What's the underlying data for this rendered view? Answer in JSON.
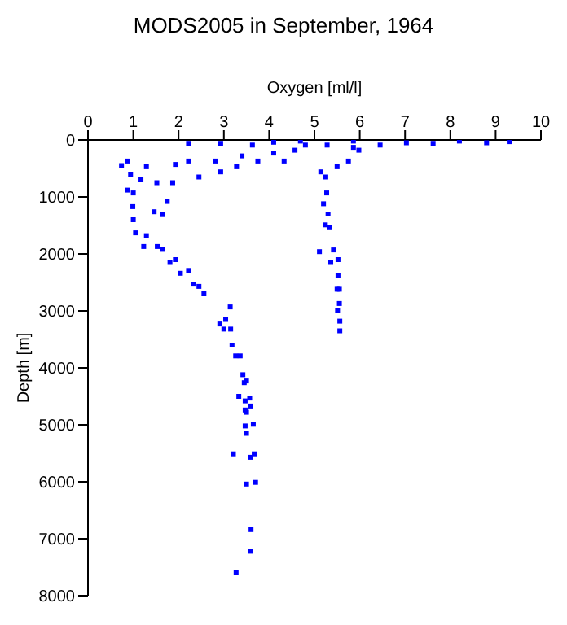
{
  "chart_data": {
    "type": "scatter",
    "title": "MODS2005 in September, 1964",
    "xlabel": "Oxygen [ml/l]",
    "ylabel": "Depth [m]",
    "xlim": [
      0,
      10
    ],
    "xticks": [
      0,
      1,
      2,
      3,
      4,
      5,
      6,
      7,
      8,
      9,
      10
    ],
    "ylim": [
      8000,
      0
    ],
    "yticks": [
      0,
      1000,
      2000,
      3000,
      4000,
      5000,
      6000,
      7000,
      8000
    ],
    "grid": false,
    "legend": false,
    "marker": "square",
    "series": [
      {
        "color": "#0000ff",
        "x": [
          3.14,
          3.04,
          2.91,
          3.0,
          3.15,
          3.18,
          3.26,
          3.36,
          3.42,
          3.45,
          3.5,
          3.33,
          3.57,
          3.47,
          3.59,
          3.47,
          3.5,
          3.47,
          3.65,
          3.5,
          3.21,
          3.59,
          3.67,
          3.5,
          3.7,
          3.6,
          3.58,
          3.27,
          5.55,
          5.55,
          5.51,
          5.56,
          5.56,
          5.14,
          5.25,
          5.27,
          5.2,
          5.3,
          5.24,
          5.34,
          5.11,
          5.42,
          5.36,
          5.52,
          5.52,
          5.5,
          0.74,
          0.88,
          0.94,
          0.88,
          1.0,
          0.99,
          1.0,
          1.05,
          1.29,
          1.23,
          1.53,
          1.64,
          1.81,
          1.93,
          2.04,
          2.22,
          2.33,
          2.45,
          2.56,
          1.29,
          1.17,
          1.52,
          1.46,
          1.64,
          1.75,
          1.87,
          1.93,
          2.22,
          2.45,
          2.81,
          2.93,
          3.28,
          3.4,
          3.75,
          4.1,
          4.33,
          4.57,
          4.8,
          2.22,
          2.93,
          3.63,
          5.28,
          5.86,
          6.45,
          7.03,
          7.62,
          8.2,
          8.8,
          9.3,
          5.75,
          5.5,
          5.98,
          4.1,
          4.69,
          5.86
        ],
        "values": [
          2930,
          3150,
          3230,
          3320,
          3320,
          3600,
          3790,
          3790,
          4120,
          4260,
          4230,
          4500,
          4530,
          4580,
          4670,
          4740,
          4780,
          5020,
          4990,
          5150,
          5510,
          5570,
          5510,
          6040,
          6010,
          6840,
          7220,
          7590,
          2620,
          2870,
          2990,
          3180,
          3350,
          560,
          650,
          930,
          1120,
          1300,
          1490,
          1540,
          1960,
          1930,
          2150,
          2100,
          2380,
          2620,
          450,
          370,
          600,
          880,
          930,
          1170,
          1400,
          1630,
          1680,
          1870,
          1870,
          1920,
          2150,
          2100,
          2340,
          2290,
          2530,
          2570,
          2700,
          470,
          700,
          750,
          1260,
          1310,
          1080,
          750,
          430,
          370,
          650,
          370,
          560,
          470,
          280,
          370,
          230,
          370,
          180,
          90,
          60,
          60,
          90,
          90,
          130,
          90,
          50,
          60,
          20,
          50,
          30,
          370,
          470,
          180,
          40,
          20,
          20
        ]
      }
    ]
  }
}
